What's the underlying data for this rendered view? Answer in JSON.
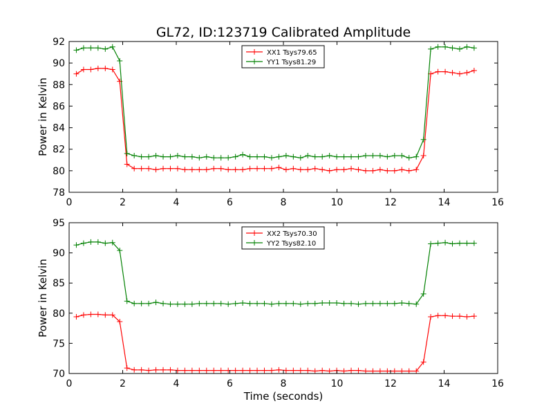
{
  "figure": {
    "title": "GL72, ID:123719 Calibrated Amplitude",
    "xlabel": "Time (seconds)"
  },
  "colors": {
    "red": "#ff0000",
    "green": "#008000"
  },
  "chart_data": [
    {
      "type": "line",
      "ylabel": "Power in Kelvin",
      "xlim": [
        0,
        16
      ],
      "ylim": [
        78,
        92
      ],
      "xticks": [
        "0",
        "2",
        "4",
        "6",
        "8",
        "10",
        "12",
        "14",
        "16"
      ],
      "yticks": [
        "78",
        "80",
        "82",
        "84",
        "86",
        "88",
        "90",
        "92"
      ],
      "legend_position": "top-center",
      "marker": "+",
      "x": [
        0.27,
        0.54,
        0.81,
        1.08,
        1.35,
        1.62,
        1.89,
        2.16,
        2.43,
        2.7,
        2.97,
        3.24,
        3.51,
        3.78,
        4.05,
        4.32,
        4.59,
        4.86,
        5.13,
        5.4,
        5.67,
        5.94,
        6.21,
        6.48,
        6.75,
        7.02,
        7.29,
        7.56,
        7.83,
        8.1,
        8.37,
        8.64,
        8.91,
        9.18,
        9.45,
        9.72,
        9.99,
        10.26,
        10.53,
        10.8,
        11.07,
        11.34,
        11.61,
        11.88,
        12.15,
        12.42,
        12.69,
        12.96,
        13.23,
        13.5,
        13.77,
        14.04,
        14.31,
        14.58,
        14.85,
        15.12
      ],
      "series": [
        {
          "name": "XX1 Tsys79.65",
          "color": "#ff0000",
          "values": [
            89.0,
            89.4,
            89.4,
            89.5,
            89.5,
            89.4,
            88.3,
            80.6,
            80.2,
            80.2,
            80.2,
            80.1,
            80.2,
            80.2,
            80.2,
            80.1,
            80.1,
            80.1,
            80.1,
            80.2,
            80.2,
            80.1,
            80.1,
            80.1,
            80.2,
            80.2,
            80.2,
            80.2,
            80.3,
            80.1,
            80.2,
            80.1,
            80.1,
            80.2,
            80.1,
            80.0,
            80.1,
            80.1,
            80.2,
            80.1,
            80.0,
            80.0,
            80.1,
            80.0,
            80.0,
            80.1,
            80.0,
            80.1,
            81.4,
            89.0,
            89.2,
            89.2,
            89.1,
            89.0,
            89.1,
            89.3
          ]
        },
        {
          "name": "YY1 Tsys81.29",
          "color": "#008000",
          "values": [
            91.2,
            91.4,
            91.4,
            91.4,
            91.3,
            91.5,
            90.2,
            81.6,
            81.4,
            81.3,
            81.3,
            81.4,
            81.3,
            81.3,
            81.4,
            81.3,
            81.3,
            81.2,
            81.3,
            81.2,
            81.2,
            81.2,
            81.3,
            81.5,
            81.3,
            81.3,
            81.3,
            81.2,
            81.3,
            81.4,
            81.3,
            81.2,
            81.4,
            81.3,
            81.3,
            81.4,
            81.3,
            81.3,
            81.3,
            81.3,
            81.4,
            81.4,
            81.4,
            81.3,
            81.4,
            81.4,
            81.2,
            81.3,
            82.9,
            91.3,
            91.5,
            91.5,
            91.4,
            91.3,
            91.5,
            91.4
          ]
        }
      ]
    },
    {
      "type": "line",
      "ylabel": "Power in Kelvin",
      "xlabel": "Time (seconds)",
      "xlim": [
        0,
        16
      ],
      "ylim": [
        70,
        95
      ],
      "xticks": [
        "0",
        "2",
        "4",
        "6",
        "8",
        "10",
        "12",
        "14",
        "16"
      ],
      "yticks": [
        "70",
        "75",
        "80",
        "85",
        "90",
        "95"
      ],
      "legend_position": "top-center",
      "marker": "+",
      "x": [
        0.27,
        0.54,
        0.81,
        1.08,
        1.35,
        1.62,
        1.89,
        2.16,
        2.43,
        2.7,
        2.97,
        3.24,
        3.51,
        3.78,
        4.05,
        4.32,
        4.59,
        4.86,
        5.13,
        5.4,
        5.67,
        5.94,
        6.21,
        6.48,
        6.75,
        7.02,
        7.29,
        7.56,
        7.83,
        8.1,
        8.37,
        8.64,
        8.91,
        9.18,
        9.45,
        9.72,
        9.99,
        10.26,
        10.53,
        10.8,
        11.07,
        11.34,
        11.61,
        11.88,
        12.15,
        12.42,
        12.69,
        12.96,
        13.23,
        13.5,
        13.77,
        14.04,
        14.31,
        14.58,
        14.85,
        15.12
      ],
      "series": [
        {
          "name": "XX2 Tsys70.30",
          "color": "#ff0000",
          "values": [
            79.4,
            79.7,
            79.8,
            79.8,
            79.7,
            79.7,
            78.6,
            70.9,
            70.6,
            70.6,
            70.5,
            70.6,
            70.6,
            70.6,
            70.5,
            70.5,
            70.5,
            70.5,
            70.5,
            70.5,
            70.5,
            70.5,
            70.5,
            70.5,
            70.5,
            70.5,
            70.5,
            70.5,
            70.6,
            70.5,
            70.5,
            70.5,
            70.5,
            70.4,
            70.5,
            70.4,
            70.5,
            70.4,
            70.5,
            70.5,
            70.4,
            70.4,
            70.4,
            70.4,
            70.4,
            70.4,
            70.4,
            70.4,
            71.9,
            79.4,
            79.6,
            79.6,
            79.5,
            79.5,
            79.4,
            79.5
          ]
        },
        {
          "name": "YY2 Tsys82.10",
          "color": "#008000",
          "values": [
            91.3,
            91.6,
            91.8,
            91.8,
            91.6,
            91.7,
            90.4,
            82.0,
            81.6,
            81.6,
            81.6,
            81.8,
            81.6,
            81.5,
            81.5,
            81.5,
            81.5,
            81.6,
            81.6,
            81.6,
            81.6,
            81.5,
            81.6,
            81.7,
            81.6,
            81.6,
            81.6,
            81.5,
            81.6,
            81.6,
            81.6,
            81.5,
            81.6,
            81.6,
            81.7,
            81.7,
            81.7,
            81.6,
            81.6,
            81.5,
            81.6,
            81.6,
            81.6,
            81.6,
            81.6,
            81.7,
            81.6,
            81.5,
            83.2,
            91.5,
            91.6,
            91.7,
            91.5,
            91.6,
            91.6,
            91.6
          ]
        }
      ]
    }
  ]
}
